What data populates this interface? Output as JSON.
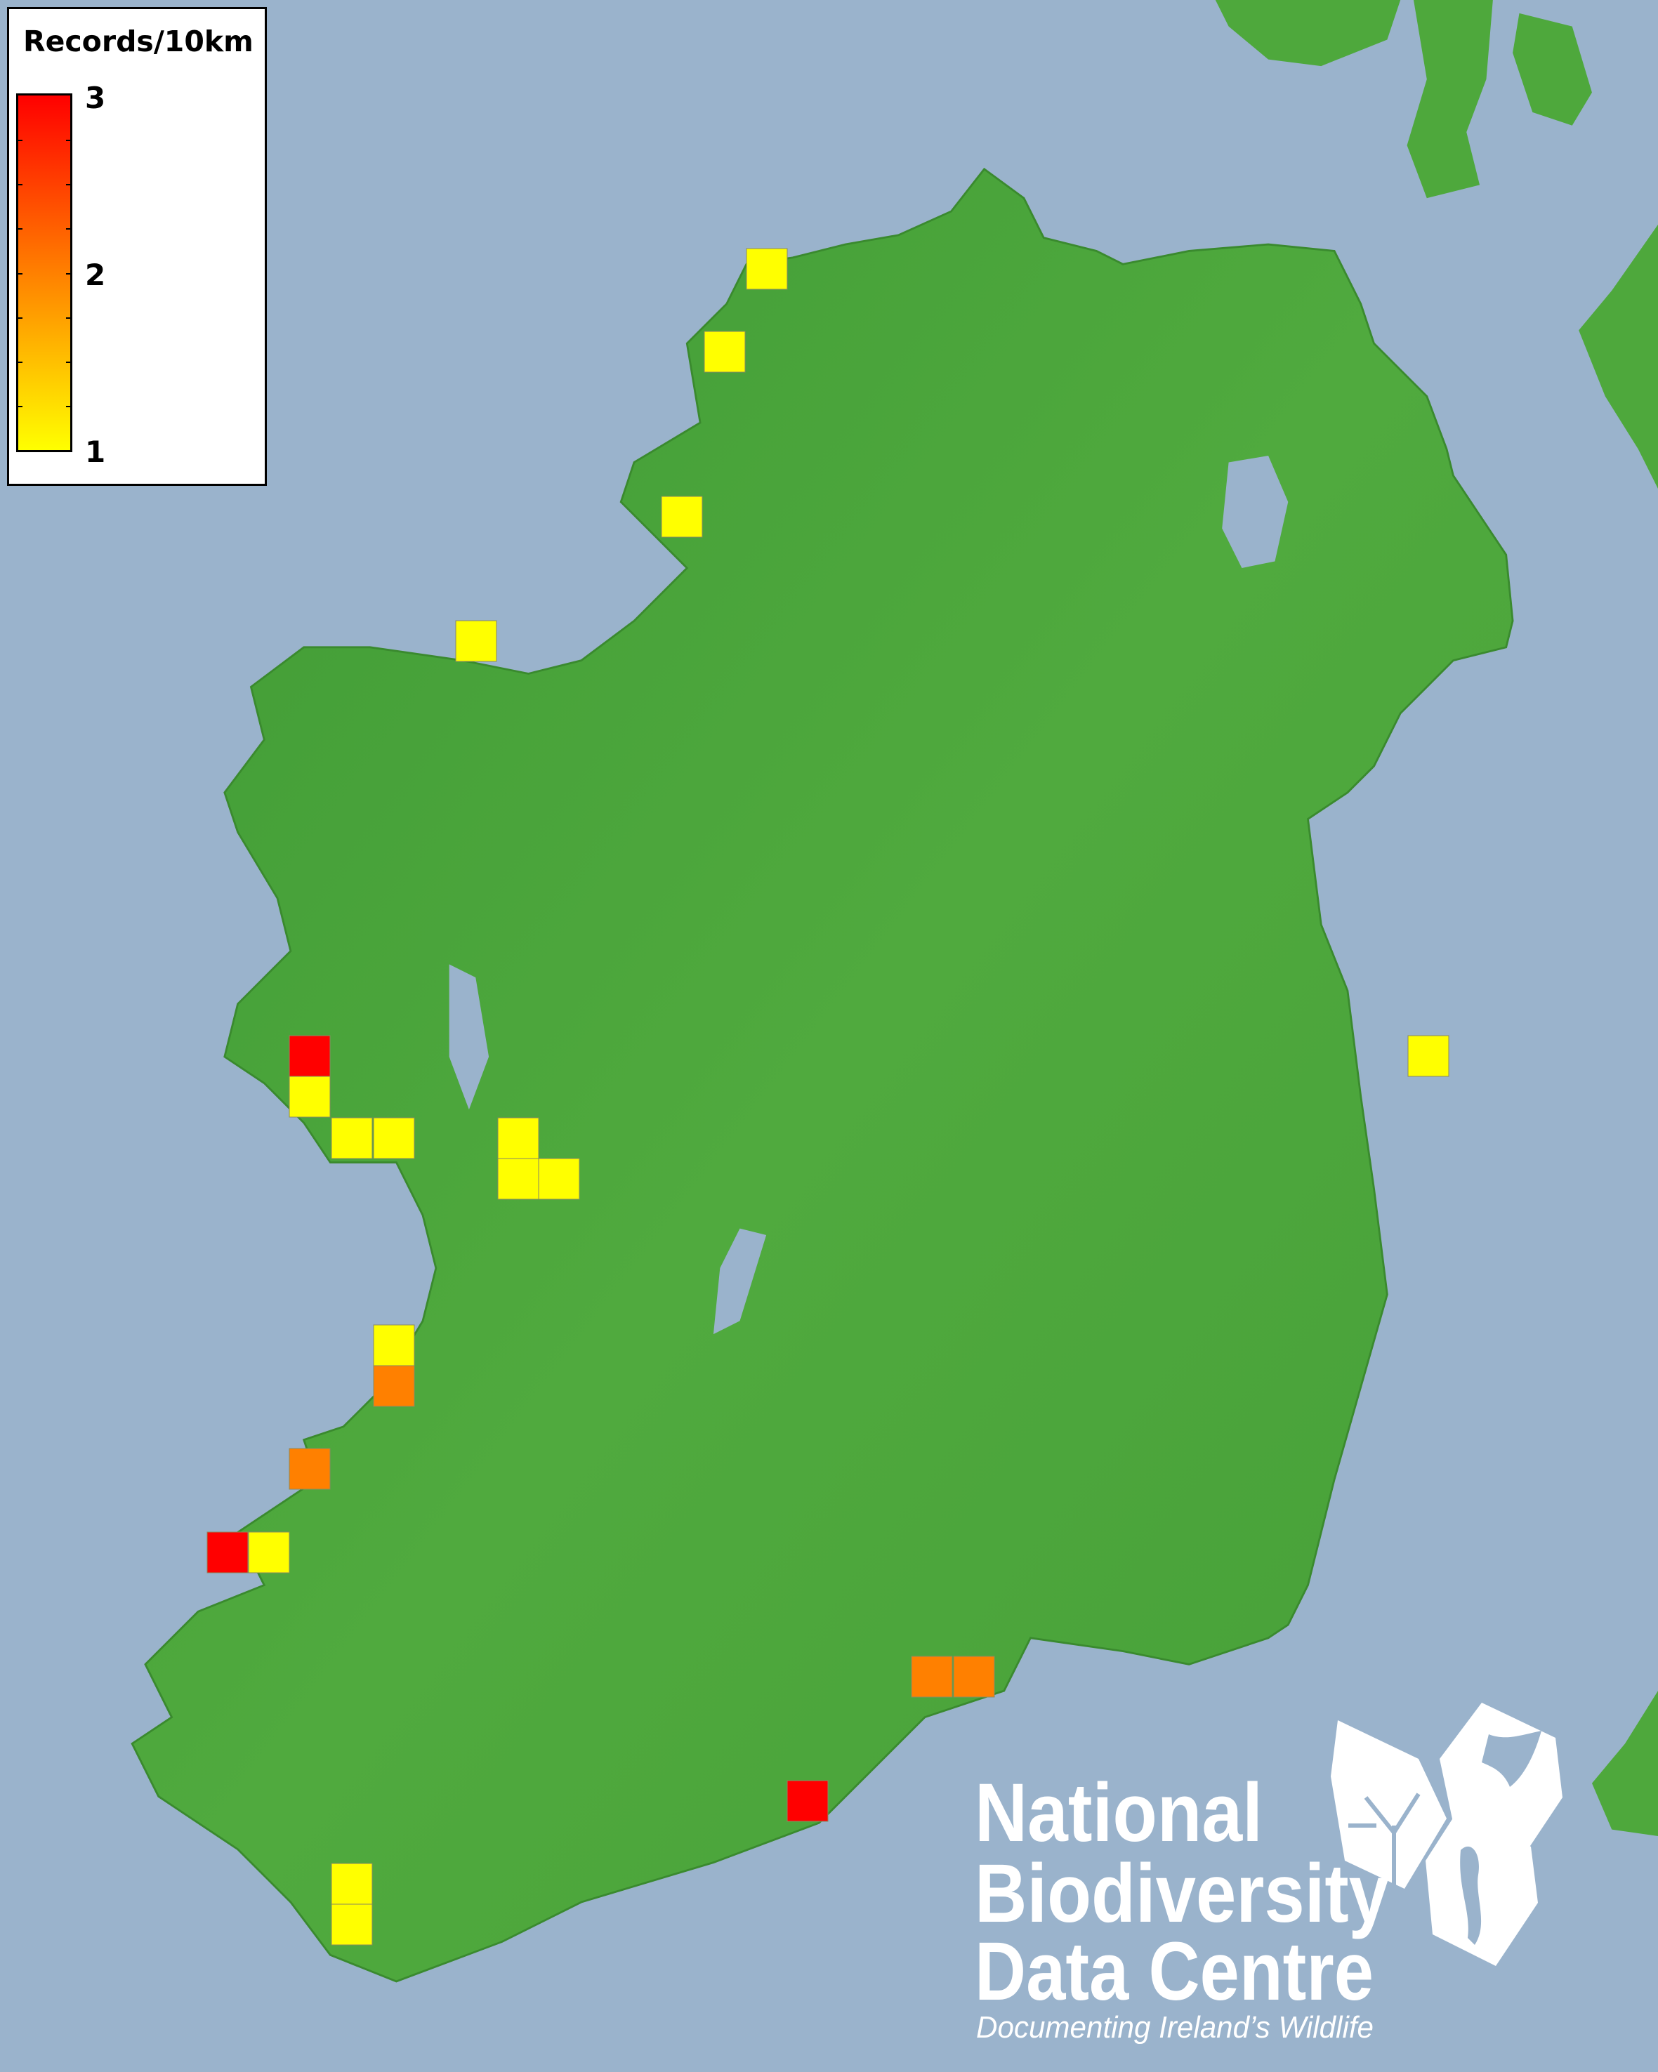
{
  "legend": {
    "title": "Records/10km",
    "max_label": "3",
    "mid_label": "2",
    "min_label": "1",
    "scale": {
      "min": 1,
      "max": 3,
      "colors": [
        "#ffff00",
        "#ff8000",
        "#ff0000"
      ]
    }
  },
  "map": {
    "sea_color": "#9ab3cc",
    "land_color": "#4ea83c",
    "records": [
      {
        "value": 1
      },
      {
        "value": 1
      },
      {
        "value": 1
      },
      {
        "value": 1
      },
      {
        "value": 1
      },
      {
        "value": 3
      },
      {
        "value": 1
      },
      {
        "value": 1
      },
      {
        "value": 1
      },
      {
        "value": 1
      },
      {
        "value": 1
      },
      {
        "value": 1
      },
      {
        "value": 1
      },
      {
        "value": 2
      },
      {
        "value": 2
      },
      {
        "value": 3
      },
      {
        "value": 1
      },
      {
        "value": 2
      },
      {
        "value": 2
      },
      {
        "value": 3
      },
      {
        "value": 1
      },
      {
        "value": 1
      }
    ]
  },
  "logo": {
    "line1": "National",
    "line2": "Biodiversity",
    "line3": "Data Centre",
    "tagline": "Documenting Ireland’s Wildlife",
    "icons": [
      "tree-icon",
      "butterfly-icon",
      "seahorse-icon"
    ]
  }
}
